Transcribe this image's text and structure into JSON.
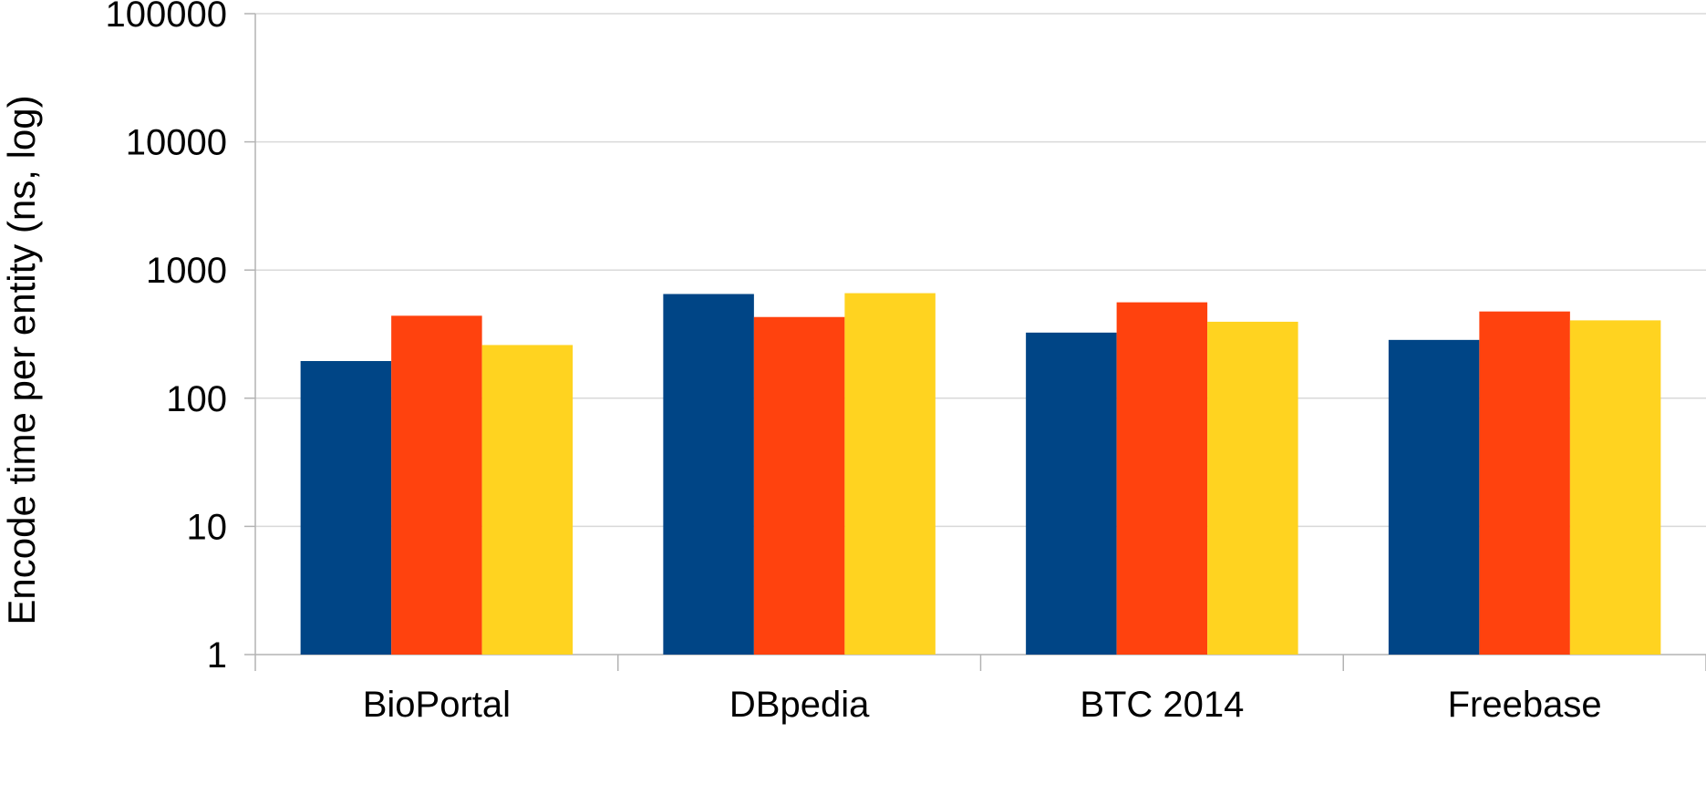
{
  "chart_data": {
    "type": "bar",
    "title": "",
    "xlabel": "",
    "ylabel": "Encode time per entity (ns, log)",
    "yscale": "log",
    "ylim": [
      1,
      100000
    ],
    "yticks": [
      1,
      10,
      100,
      1000,
      10000,
      100000
    ],
    "ytick_labels": [
      "1",
      "10",
      "100",
      "1000",
      "10000",
      "100000"
    ],
    "grid": true,
    "legend": "none",
    "categories": [
      "BioPortal",
      "DBpedia",
      "BTC 2014",
      "Freebase"
    ],
    "series": [
      {
        "color": "#004586",
        "values": [
          195,
          650,
          325,
          285
        ]
      },
      {
        "color": "#ff420e",
        "values": [
          440,
          430,
          560,
          475
        ]
      },
      {
        "color": "#ffd320",
        "values": [
          260,
          660,
          395,
          405
        ]
      }
    ]
  }
}
